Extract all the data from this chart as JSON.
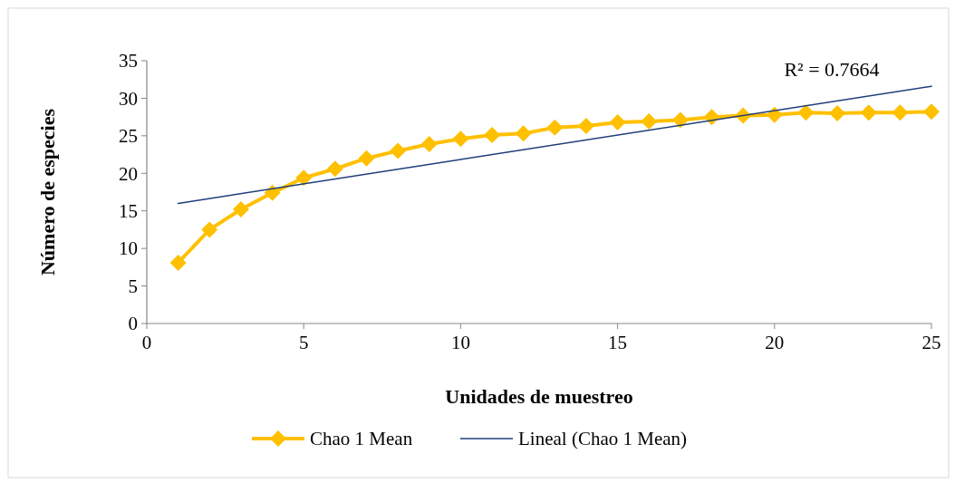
{
  "chart_data": {
    "type": "line",
    "xlabel": "Unidades de muestreo",
    "ylabel": "Número de especies",
    "x": [
      1,
      2,
      3,
      4,
      5,
      6,
      7,
      8,
      9,
      10,
      11,
      12,
      13,
      14,
      15,
      16,
      17,
      18,
      19,
      20,
      21,
      22,
      23,
      24,
      25
    ],
    "series": [
      {
        "name": "Chao 1 Mean",
        "color": "#ffc000",
        "marker": "diamond",
        "values": [
          8.1,
          12.5,
          15.2,
          17.4,
          19.4,
          20.6,
          22.0,
          23.0,
          23.9,
          24.6,
          25.1,
          25.3,
          26.1,
          26.3,
          26.8,
          26.9,
          27.1,
          27.5,
          27.7,
          27.8,
          28.1,
          28.0,
          28.1,
          28.1,
          28.2
        ]
      },
      {
        "name": "Lineal (Chao 1 Mean)",
        "color": "#1f3d7a",
        "type": "line",
        "marker": "none",
        "x": [
          1,
          25
        ],
        "values": [
          16.0,
          31.6
        ]
      }
    ],
    "xlim": [
      0,
      25
    ],
    "xticks": [
      0,
      5,
      10,
      15,
      20,
      25
    ],
    "ylim": [
      0,
      35
    ],
    "yticks": [
      0,
      5,
      10,
      15,
      20,
      25,
      30,
      35
    ],
    "annotations": [
      "R² = 0.7664"
    ],
    "legend": "bottom",
    "grid": false
  }
}
